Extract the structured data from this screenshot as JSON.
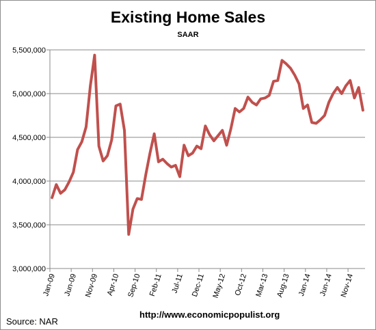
{
  "chart_data": {
    "type": "line",
    "title": "Existing Home Sales",
    "subtitle": "SAAR",
    "source": "Source:  NAR",
    "url": "http://www.economicpopulist.org",
    "ylim": [
      3000000,
      5500000
    ],
    "yticks": [
      "3,000,000",
      "3,500,000",
      "4,000,000",
      "4,500,000",
      "5,000,000",
      "5,500,000"
    ],
    "ytick_values": [
      3000000,
      3500000,
      4000000,
      4500000,
      5000000,
      5500000
    ],
    "xtick_labels": [
      "Jan-09",
      "Jun-09",
      "Nov-09",
      "Apr-10",
      "Sep-10",
      "Feb-11",
      "Jul-11",
      "Dec-11",
      "May-12",
      "Oct-12",
      "Mar-13",
      "Aug-13",
      "Jan-14",
      "Jun-14",
      "Nov-14"
    ],
    "xtick_index": [
      0,
      5,
      10,
      15,
      20,
      25,
      30,
      35,
      40,
      45,
      50,
      55,
      60,
      65,
      70
    ],
    "grid": true,
    "line_color": "#c0504d",
    "series": [
      {
        "values": [
          3810000,
          3960000,
          3860000,
          3900000,
          3990000,
          4100000,
          4360000,
          4450000,
          4620000,
          5090000,
          5440000,
          4400000,
          4230000,
          4290000,
          4470000,
          4860000,
          4880000,
          4580000,
          3390000,
          3680000,
          3800000,
          3790000,
          4070000,
          4320000,
          4540000,
          4220000,
          4250000,
          4200000,
          4160000,
          4180000,
          4050000,
          4410000,
          4290000,
          4320000,
          4400000,
          4370000,
          4630000,
          4530000,
          4460000,
          4520000,
          4580000,
          4410000,
          4600000,
          4830000,
          4790000,
          4830000,
          4960000,
          4900000,
          4870000,
          4940000,
          4950000,
          4980000,
          5140000,
          5150000,
          5380000,
          5340000,
          5290000,
          5210000,
          5110000,
          4830000,
          4870000,
          4670000,
          4660000,
          4700000,
          4750000,
          4900000,
          5000000,
          5070000,
          5000000,
          5090000,
          5150000,
          4950000,
          5070000,
          4810000
        ]
      }
    ]
  }
}
